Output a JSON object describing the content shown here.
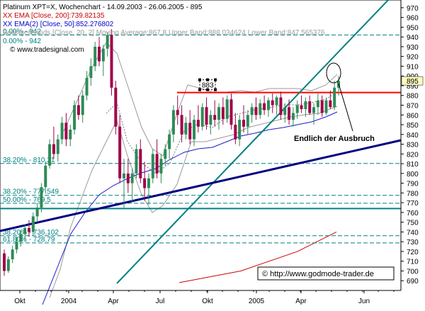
{
  "chart_data": {
    "type": "candlestick",
    "instrument": {
      "title": "Platinum XPT=X, Wochenchart - 14.09.2003 - 26.06.2005 - 895",
      "url": "www.tradesignal.com"
    },
    "legend": [
      {
        "text": "XX EMA [Close, 200]:739.82135",
        "color": "#cc0000"
      },
      {
        "text": "XX EMA(2) [Close, 50]:852.276802",
        "color": "#0000cc"
      },
      {
        "text": "BollingerBands [Close, 20, 2] Moving Average:867.8 Upper Band:888.034624 Lower Band:847.565376",
        "color": "#999999"
      },
      {
        "text": "0.00% - 942",
        "color": "#008080"
      }
    ],
    "y_axis": {
      "min": 680,
      "max": 975,
      "ticks": [
        690,
        700,
        710,
        720,
        730,
        740,
        750,
        760,
        770,
        780,
        790,
        800,
        810,
        820,
        830,
        840,
        850,
        860,
        870,
        880,
        890,
        900,
        910,
        920,
        930,
        940,
        950,
        960,
        970
      ],
      "highlight": 895
    },
    "x_axis": {
      "labels": [
        "Okt",
        "2004",
        "Apr",
        "Jul",
        "Okt",
        "2005",
        "Apr",
        "Jun"
      ]
    },
    "fib_levels": [
      {
        "label": "0.00% - 942",
        "value": 942
      },
      {
        "label": "38.20% - 810.21",
        "value": 810.21
      },
      {
        "label": "38.20% - 777.549",
        "value": 777.549
      },
      {
        "label": "50.00% - 769.5",
        "value": 769.5
      },
      {
        "label": "38.20% - 736.102",
        "value": 736.102
      },
      {
        "label": "61.80% - 728.79",
        "value": 728.79
      }
    ],
    "horizontal_lines": [
      {
        "name": "resistance",
        "value": 883,
        "color": "#ff0000"
      },
      {
        "name": "support",
        "value": 764,
        "color": "#008080"
      }
    ],
    "annotations": {
      "marker_label": "883",
      "breakout_text": "Endlich der Ausbruch",
      "copyright": "© http://www.godmode-trader.de"
    },
    "ema200": [
      {
        "x": 253,
        "y": 688
      },
      {
        "x": 340,
        "y": 700
      },
      {
        "x": 420,
        "y": 720
      },
      {
        "x": 475,
        "y": 740
      }
    ],
    "ema50_points": [
      [
        60,
        430
      ],
      [
        80,
        380
      ],
      [
        100,
        330
      ],
      [
        120,
        300
      ],
      [
        140,
        275
      ],
      [
        160,
        262
      ],
      [
        180,
        252
      ],
      [
        200,
        244
      ],
      [
        220,
        238
      ],
      [
        240,
        225
      ],
      [
        260,
        215
      ],
      [
        280,
        210
      ],
      [
        300,
        208
      ],
      [
        320,
        200
      ],
      [
        340,
        192
      ],
      [
        360,
        188
      ],
      [
        380,
        183
      ],
      [
        400,
        180
      ],
      [
        420,
        176
      ],
      [
        440,
        172
      ],
      [
        460,
        165
      ],
      [
        476,
        158
      ]
    ],
    "bb_upper": [
      [
        90,
        185
      ],
      [
        110,
        140
      ],
      [
        130,
        95
      ],
      [
        150,
        60
      ],
      [
        165,
        75
      ],
      [
        180,
        120
      ],
      [
        200,
        180
      ],
      [
        215,
        210
      ],
      [
        230,
        220
      ],
      [
        250,
        160
      ],
      [
        265,
        120
      ],
      [
        285,
        125
      ],
      [
        300,
        130
      ],
      [
        320,
        130
      ],
      [
        340,
        128
      ],
      [
        360,
        130
      ],
      [
        380,
        125
      ],
      [
        400,
        125
      ],
      [
        420,
        125
      ],
      [
        440,
        128
      ],
      [
        460,
        120
      ],
      [
        476,
        105
      ]
    ],
    "bb_lower": [
      [
        70,
        420
      ],
      [
        85,
        380
      ],
      [
        100,
        320
      ],
      [
        115,
        280
      ],
      [
        130,
        240
      ],
      [
        150,
        200
      ],
      [
        165,
        170
      ],
      [
        180,
        220
      ],
      [
        200,
        275
      ],
      [
        215,
        300
      ],
      [
        230,
        290
      ],
      [
        250,
        260
      ],
      [
        270,
        200
      ],
      [
        290,
        200
      ],
      [
        310,
        195
      ],
      [
        330,
        190
      ],
      [
        350,
        180
      ],
      [
        370,
        175
      ],
      [
        390,
        170
      ],
      [
        410,
        165
      ],
      [
        430,
        162
      ],
      [
        450,
        160
      ],
      [
        476,
        150
      ]
    ],
    "bb_mid": [
      [
        150,
        160
      ],
      [
        165,
        145
      ],
      [
        180,
        200
      ],
      [
        200,
        230
      ],
      [
        220,
        245
      ],
      [
        240,
        230
      ],
      [
        260,
        185
      ],
      [
        280,
        175
      ],
      [
        300,
        180
      ],
      [
        320,
        165
      ],
      [
        340,
        160
      ],
      [
        360,
        155
      ],
      [
        380,
        152
      ],
      [
        400,
        148
      ],
      [
        420,
        148
      ],
      [
        440,
        145
      ],
      [
        460,
        140
      ],
      [
        476,
        130
      ]
    ],
    "trend_lines": [
      {
        "name": "steep-green",
        "color": "#008080",
        "x1": 165,
        "y1": 400,
        "x2": 548,
        "y2": 0,
        "width": 2
      },
      {
        "name": "navy-support",
        "color": "#000080",
        "x1": 0,
        "y1": 326,
        "x2": 566,
        "y2": 198,
        "width": 3
      }
    ],
    "candles": [
      {
        "o": 718,
        "h": 722,
        "l": 695,
        "c": 700
      },
      {
        "o": 700,
        "h": 715,
        "l": 698,
        "c": 712
      },
      {
        "o": 712,
        "h": 726,
        "l": 708,
        "c": 722
      },
      {
        "o": 722,
        "h": 735,
        "l": 718,
        "c": 730
      },
      {
        "o": 730,
        "h": 742,
        "l": 725,
        "c": 738
      },
      {
        "o": 738,
        "h": 748,
        "l": 730,
        "c": 744
      },
      {
        "o": 744,
        "h": 752,
        "l": 735,
        "c": 740
      },
      {
        "o": 740,
        "h": 760,
        "l": 736,
        "c": 756
      },
      {
        "o": 756,
        "h": 770,
        "l": 750,
        "c": 765
      },
      {
        "o": 765,
        "h": 790,
        "l": 760,
        "c": 786
      },
      {
        "o": 786,
        "h": 812,
        "l": 780,
        "c": 808
      },
      {
        "o": 808,
        "h": 835,
        "l": 805,
        "c": 830
      },
      {
        "o": 830,
        "h": 848,
        "l": 815,
        "c": 820
      },
      {
        "o": 820,
        "h": 840,
        "l": 812,
        "c": 835
      },
      {
        "o": 835,
        "h": 858,
        "l": 830,
        "c": 852
      },
      {
        "o": 852,
        "h": 862,
        "l": 828,
        "c": 835
      },
      {
        "o": 835,
        "h": 850,
        "l": 828,
        "c": 845
      },
      {
        "o": 845,
        "h": 875,
        "l": 840,
        "c": 870
      },
      {
        "o": 870,
        "h": 880,
        "l": 855,
        "c": 860
      },
      {
        "o": 860,
        "h": 885,
        "l": 852,
        "c": 880
      },
      {
        "o": 880,
        "h": 905,
        "l": 875,
        "c": 898
      },
      {
        "o": 898,
        "h": 918,
        "l": 890,
        "c": 910
      },
      {
        "o": 910,
        "h": 935,
        "l": 905,
        "c": 930
      },
      {
        "o": 930,
        "h": 940,
        "l": 910,
        "c": 915
      },
      {
        "o": 915,
        "h": 932,
        "l": 900,
        "c": 928
      },
      {
        "o": 928,
        "h": 945,
        "l": 920,
        "c": 942
      },
      {
        "o": 942,
        "h": 948,
        "l": 880,
        "c": 888
      },
      {
        "o": 888,
        "h": 895,
        "l": 840,
        "c": 848
      },
      {
        "o": 848,
        "h": 860,
        "l": 790,
        "c": 795
      },
      {
        "o": 795,
        "h": 815,
        "l": 765,
        "c": 800
      },
      {
        "o": 800,
        "h": 815,
        "l": 780,
        "c": 790
      },
      {
        "o": 790,
        "h": 805,
        "l": 770,
        "c": 800
      },
      {
        "o": 800,
        "h": 830,
        "l": 795,
        "c": 825
      },
      {
        "o": 825,
        "h": 835,
        "l": 790,
        "c": 795
      },
      {
        "o": 795,
        "h": 812,
        "l": 772,
        "c": 785
      },
      {
        "o": 785,
        "h": 800,
        "l": 768,
        "c": 795
      },
      {
        "o": 795,
        "h": 825,
        "l": 790,
        "c": 820
      },
      {
        "o": 820,
        "h": 835,
        "l": 795,
        "c": 800
      },
      {
        "o": 800,
        "h": 820,
        "l": 790,
        "c": 815
      },
      {
        "o": 815,
        "h": 830,
        "l": 808,
        "c": 825
      },
      {
        "o": 825,
        "h": 845,
        "l": 815,
        "c": 840
      },
      {
        "o": 840,
        "h": 870,
        "l": 832,
        "c": 865
      },
      {
        "o": 865,
        "h": 880,
        "l": 850,
        "c": 860
      },
      {
        "o": 860,
        "h": 870,
        "l": 832,
        "c": 840
      },
      {
        "o": 840,
        "h": 858,
        "l": 835,
        "c": 852
      },
      {
        "o": 852,
        "h": 865,
        "l": 830,
        "c": 835
      },
      {
        "o": 835,
        "h": 860,
        "l": 828,
        "c": 855
      },
      {
        "o": 855,
        "h": 870,
        "l": 842,
        "c": 848
      },
      {
        "o": 848,
        "h": 872,
        "l": 844,
        "c": 868
      },
      {
        "o": 868,
        "h": 878,
        "l": 845,
        "c": 850
      },
      {
        "o": 850,
        "h": 865,
        "l": 840,
        "c": 860
      },
      {
        "o": 860,
        "h": 875,
        "l": 848,
        "c": 855
      },
      {
        "o": 855,
        "h": 872,
        "l": 845,
        "c": 868
      },
      {
        "o": 868,
        "h": 878,
        "l": 850,
        "c": 856
      },
      {
        "o": 856,
        "h": 880,
        "l": 852,
        "c": 876
      },
      {
        "o": 876,
        "h": 882,
        "l": 845,
        "c": 850
      },
      {
        "o": 850,
        "h": 862,
        "l": 830,
        "c": 835
      },
      {
        "o": 835,
        "h": 860,
        "l": 828,
        "c": 855
      },
      {
        "o": 855,
        "h": 870,
        "l": 842,
        "c": 848
      },
      {
        "o": 848,
        "h": 865,
        "l": 840,
        "c": 860
      },
      {
        "o": 860,
        "h": 872,
        "l": 852,
        "c": 868
      },
      {
        "o": 868,
        "h": 878,
        "l": 855,
        "c": 860
      },
      {
        "o": 860,
        "h": 876,
        "l": 856,
        "c": 872
      },
      {
        "o": 872,
        "h": 880,
        "l": 860,
        "c": 865
      },
      {
        "o": 865,
        "h": 878,
        "l": 858,
        "c": 875
      },
      {
        "o": 875,
        "h": 882,
        "l": 862,
        "c": 870
      },
      {
        "o": 870,
        "h": 880,
        "l": 860,
        "c": 878
      },
      {
        "o": 878,
        "h": 884,
        "l": 855,
        "c": 860
      },
      {
        "o": 860,
        "h": 872,
        "l": 852,
        "c": 868
      },
      {
        "o": 868,
        "h": 876,
        "l": 850,
        "c": 855
      },
      {
        "o": 855,
        "h": 868,
        "l": 848,
        "c": 862
      },
      {
        "o": 862,
        "h": 875,
        "l": 856,
        "c": 870
      },
      {
        "o": 870,
        "h": 880,
        "l": 862,
        "c": 866
      },
      {
        "o": 866,
        "h": 878,
        "l": 858,
        "c": 874
      },
      {
        "o": 874,
        "h": 880,
        "l": 860,
        "c": 862
      },
      {
        "o": 862,
        "h": 872,
        "l": 850,
        "c": 868
      },
      {
        "o": 868,
        "h": 882,
        "l": 860,
        "c": 875
      },
      {
        "o": 875,
        "h": 880,
        "l": 858,
        "c": 862
      },
      {
        "o": 862,
        "h": 878,
        "l": 860,
        "c": 875
      },
      {
        "o": 875,
        "h": 885,
        "l": 866,
        "c": 868
      },
      {
        "o": 868,
        "h": 895,
        "l": 865,
        "c": 888
      },
      {
        "o": 888,
        "h": 900,
        "l": 880,
        "c": 895
      }
    ]
  }
}
